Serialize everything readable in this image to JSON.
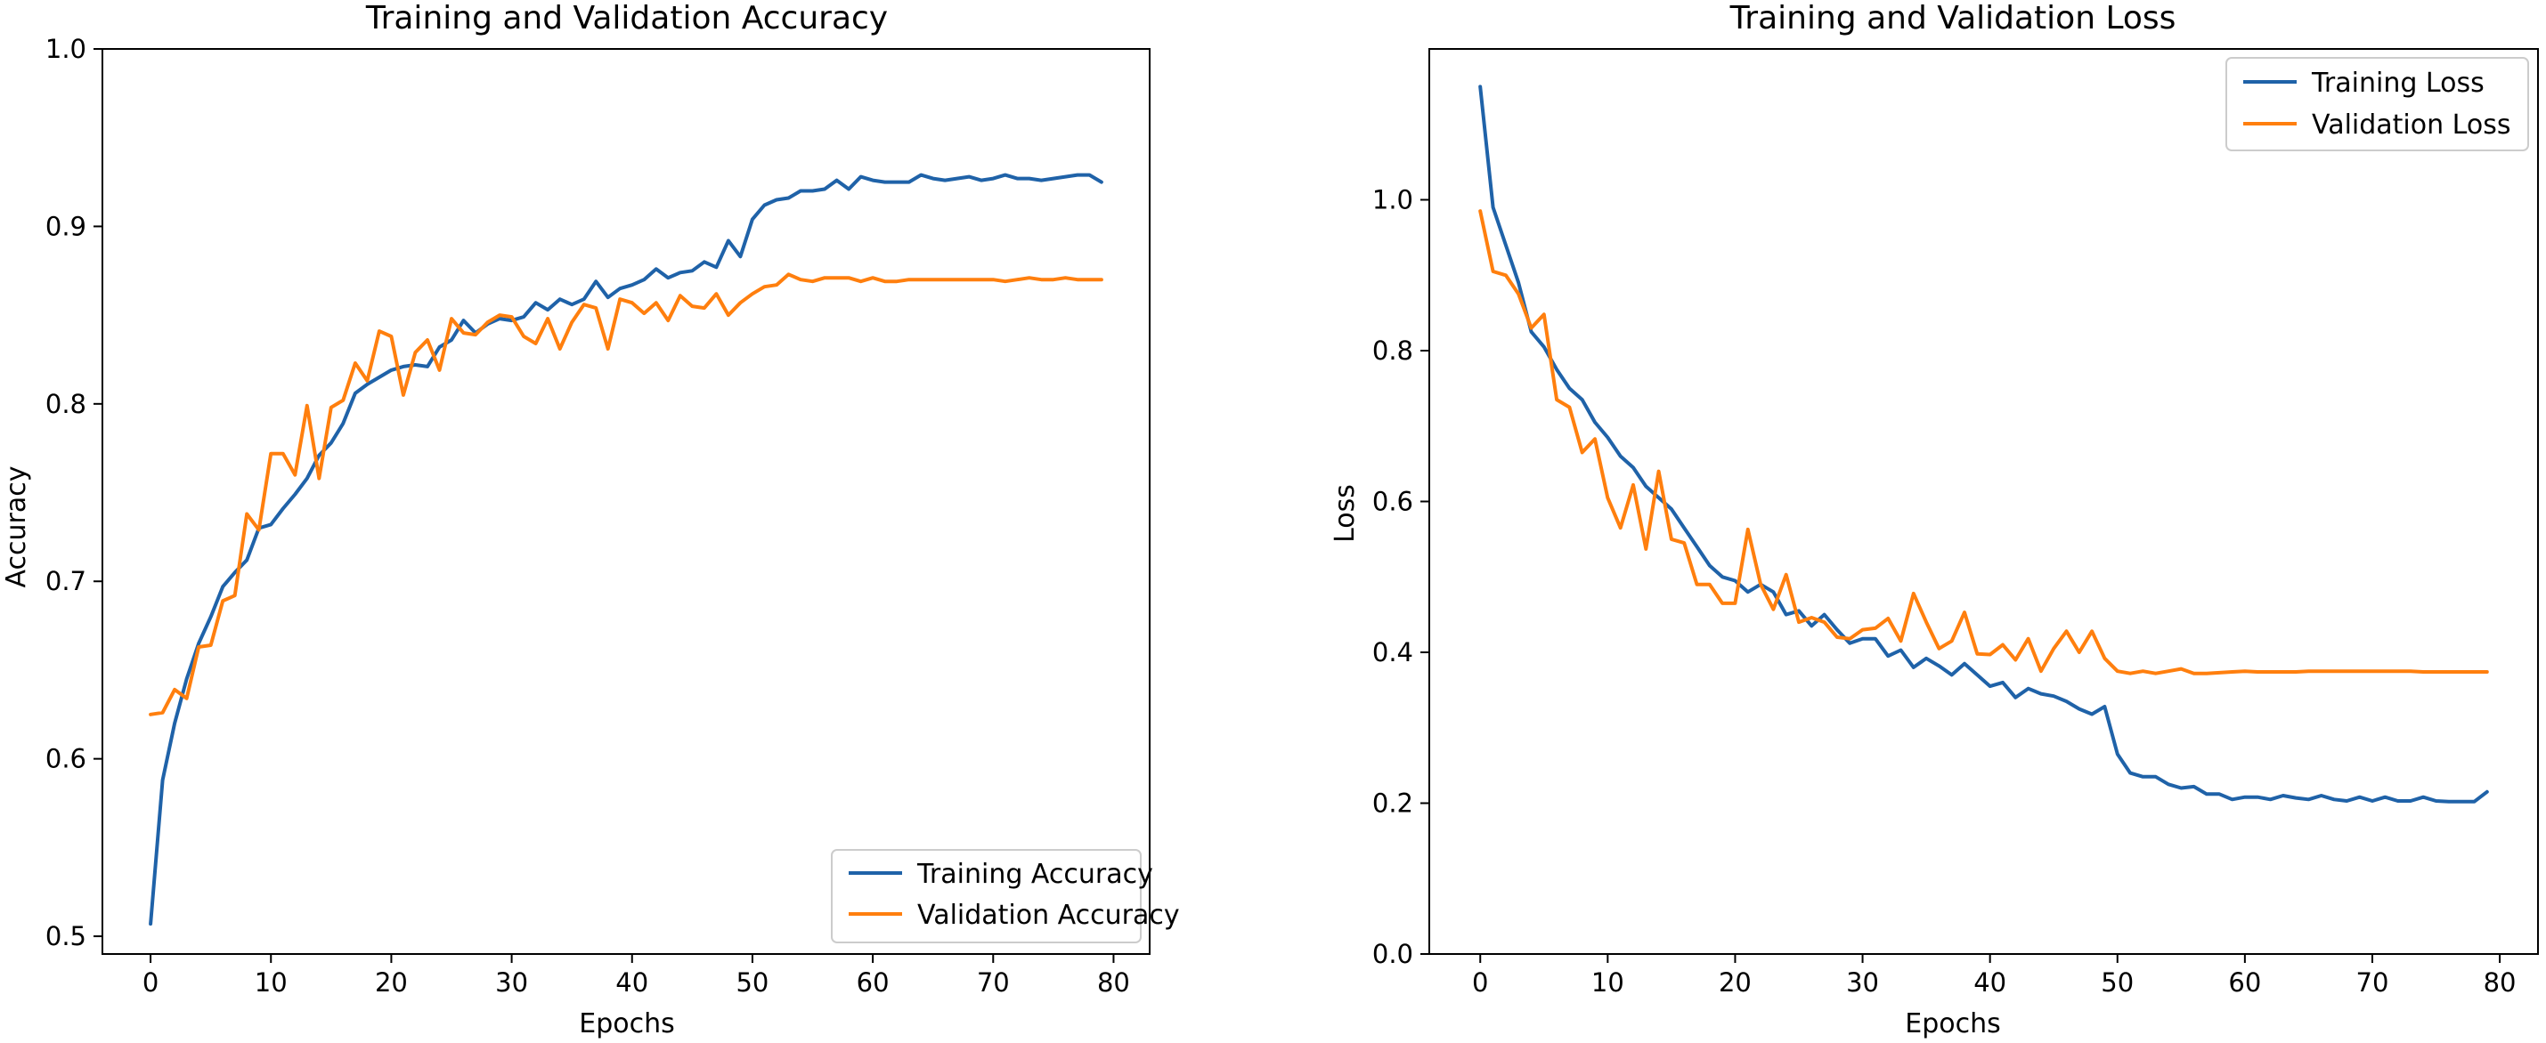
{
  "colors": {
    "series1": "#1f62a8",
    "series2": "#ff7f0e"
  },
  "chart_data": [
    {
      "type": "line",
      "title": "Training and Validation Accuracy",
      "xlabel": "Epochs",
      "ylabel": "Accuracy",
      "xlim": [
        -4,
        83
      ],
      "ylim": [
        0.49,
        1.0
      ],
      "xticks": [
        0,
        10,
        20,
        30,
        40,
        50,
        60,
        70,
        80
      ],
      "yticks": [
        0.5,
        0.6,
        0.7,
        0.8,
        0.9,
        1.0
      ],
      "ytick_labels": [
        "0.5",
        "0.6",
        "0.7",
        "0.8",
        "0.9",
        "1.0"
      ],
      "legend_position": "lower-right",
      "series": [
        {
          "name": "Training Accuracy",
          "color": "#1f62a8",
          "values": [
            0.507,
            0.588,
            0.62,
            0.645,
            0.665,
            0.68,
            0.697,
            0.705,
            0.712,
            0.73,
            0.732,
            0.741,
            0.749,
            0.758,
            0.771,
            0.778,
            0.789,
            0.806,
            0.811,
            0.815,
            0.819,
            0.821,
            0.822,
            0.821,
            0.832,
            0.836,
            0.847,
            0.84,
            0.845,
            0.848,
            0.847,
            0.849,
            0.857,
            0.853,
            0.859,
            0.856,
            0.859,
            0.869,
            0.86,
            0.865,
            0.867,
            0.87,
            0.876,
            0.871,
            0.874,
            0.875,
            0.88,
            0.877,
            0.892,
            0.883,
            0.904,
            0.912,
            0.915,
            0.916,
            0.92,
            0.92,
            0.921,
            0.926,
            0.921,
            0.928,
            0.926,
            0.925,
            0.925,
            0.925,
            0.929,
            0.927,
            0.926,
            0.927,
            0.928,
            0.926,
            0.927,
            0.929,
            0.927,
            0.927,
            0.926,
            0.927,
            0.928,
            0.929,
            0.929,
            0.925
          ]
        },
        {
          "name": "Validation Accuracy",
          "color": "#ff7f0e",
          "values": [
            0.625,
            0.626,
            0.639,
            0.634,
            0.663,
            0.664,
            0.689,
            0.692,
            0.738,
            0.729,
            0.772,
            0.772,
            0.76,
            0.799,
            0.758,
            0.798,
            0.802,
            0.823,
            0.813,
            0.841,
            0.838,
            0.805,
            0.829,
            0.836,
            0.819,
            0.848,
            0.84,
            0.839,
            0.846,
            0.85,
            0.849,
            0.838,
            0.834,
            0.848,
            0.831,
            0.846,
            0.856,
            0.854,
            0.831,
            0.859,
            0.857,
            0.851,
            0.857,
            0.847,
            0.861,
            0.855,
            0.854,
            0.862,
            0.85,
            0.857,
            0.862,
            0.866,
            0.867,
            0.873,
            0.87,
            0.869,
            0.871,
            0.871,
            0.871,
            0.869,
            0.871,
            0.869,
            0.869,
            0.87,
            0.87,
            0.87,
            0.87,
            0.87,
            0.87,
            0.87,
            0.87,
            0.869,
            0.87,
            0.871,
            0.87,
            0.87,
            0.871,
            0.87,
            0.87,
            0.87
          ]
        }
      ]
    },
    {
      "type": "line",
      "title": "Training and Validation Loss",
      "xlabel": "Epochs",
      "ylabel": "Loss",
      "xlim": [
        -4,
        83
      ],
      "ylim": [
        0.0,
        1.2
      ],
      "xticks": [
        0,
        10,
        20,
        30,
        40,
        50,
        60,
        70,
        80
      ],
      "yticks": [
        0.0,
        0.2,
        0.4,
        0.6,
        0.8,
        1.0
      ],
      "ytick_labels": [
        "0.0",
        "0.2",
        "0.4",
        "0.6",
        "0.8",
        "1.0"
      ],
      "legend_position": "upper-right",
      "series": [
        {
          "name": "Training Loss",
          "color": "#1f62a8",
          "values": [
            1.15,
            0.99,
            0.94,
            0.89,
            0.825,
            0.805,
            0.775,
            0.75,
            0.735,
            0.705,
            0.685,
            0.66,
            0.645,
            0.62,
            0.605,
            0.59,
            0.565,
            0.54,
            0.515,
            0.5,
            0.495,
            0.48,
            0.49,
            0.48,
            0.45,
            0.455,
            0.435,
            0.45,
            0.43,
            0.412,
            0.418,
            0.418,
            0.395,
            0.403,
            0.38,
            0.392,
            0.382,
            0.37,
            0.385,
            0.37,
            0.355,
            0.36,
            0.34,
            0.352,
            0.345,
            0.342,
            0.335,
            0.325,
            0.318,
            0.328,
            0.265,
            0.24,
            0.235,
            0.235,
            0.225,
            0.22,
            0.222,
            0.212,
            0.212,
            0.205,
            0.208,
            0.208,
            0.205,
            0.21,
            0.207,
            0.205,
            0.21,
            0.205,
            0.203,
            0.208,
            0.203,
            0.208,
            0.203,
            0.203,
            0.208,
            0.203,
            0.202,
            0.202,
            0.202,
            0.215
          ]
        },
        {
          "name": "Validation Loss",
          "color": "#ff7f0e",
          "values": [
            0.985,
            0.905,
            0.9,
            0.875,
            0.83,
            0.848,
            0.735,
            0.725,
            0.665,
            0.683,
            0.605,
            0.565,
            0.622,
            0.537,
            0.64,
            0.55,
            0.545,
            0.49,
            0.49,
            0.465,
            0.465,
            0.563,
            0.49,
            0.457,
            0.503,
            0.44,
            0.446,
            0.44,
            0.42,
            0.418,
            0.43,
            0.432,
            0.445,
            0.415,
            0.478,
            0.44,
            0.405,
            0.415,
            0.453,
            0.398,
            0.397,
            0.41,
            0.39,
            0.418,
            0.375,
            0.405,
            0.428,
            0.4,
            0.428,
            0.392,
            0.375,
            0.372,
            0.375,
            0.372,
            0.375,
            0.378,
            0.372,
            0.372,
            0.373,
            0.374,
            0.375,
            0.374,
            0.374,
            0.374,
            0.374,
            0.375,
            0.375,
            0.375,
            0.375,
            0.375,
            0.375,
            0.375,
            0.375,
            0.375,
            0.374,
            0.374,
            0.374,
            0.374,
            0.374,
            0.374
          ]
        }
      ]
    }
  ]
}
